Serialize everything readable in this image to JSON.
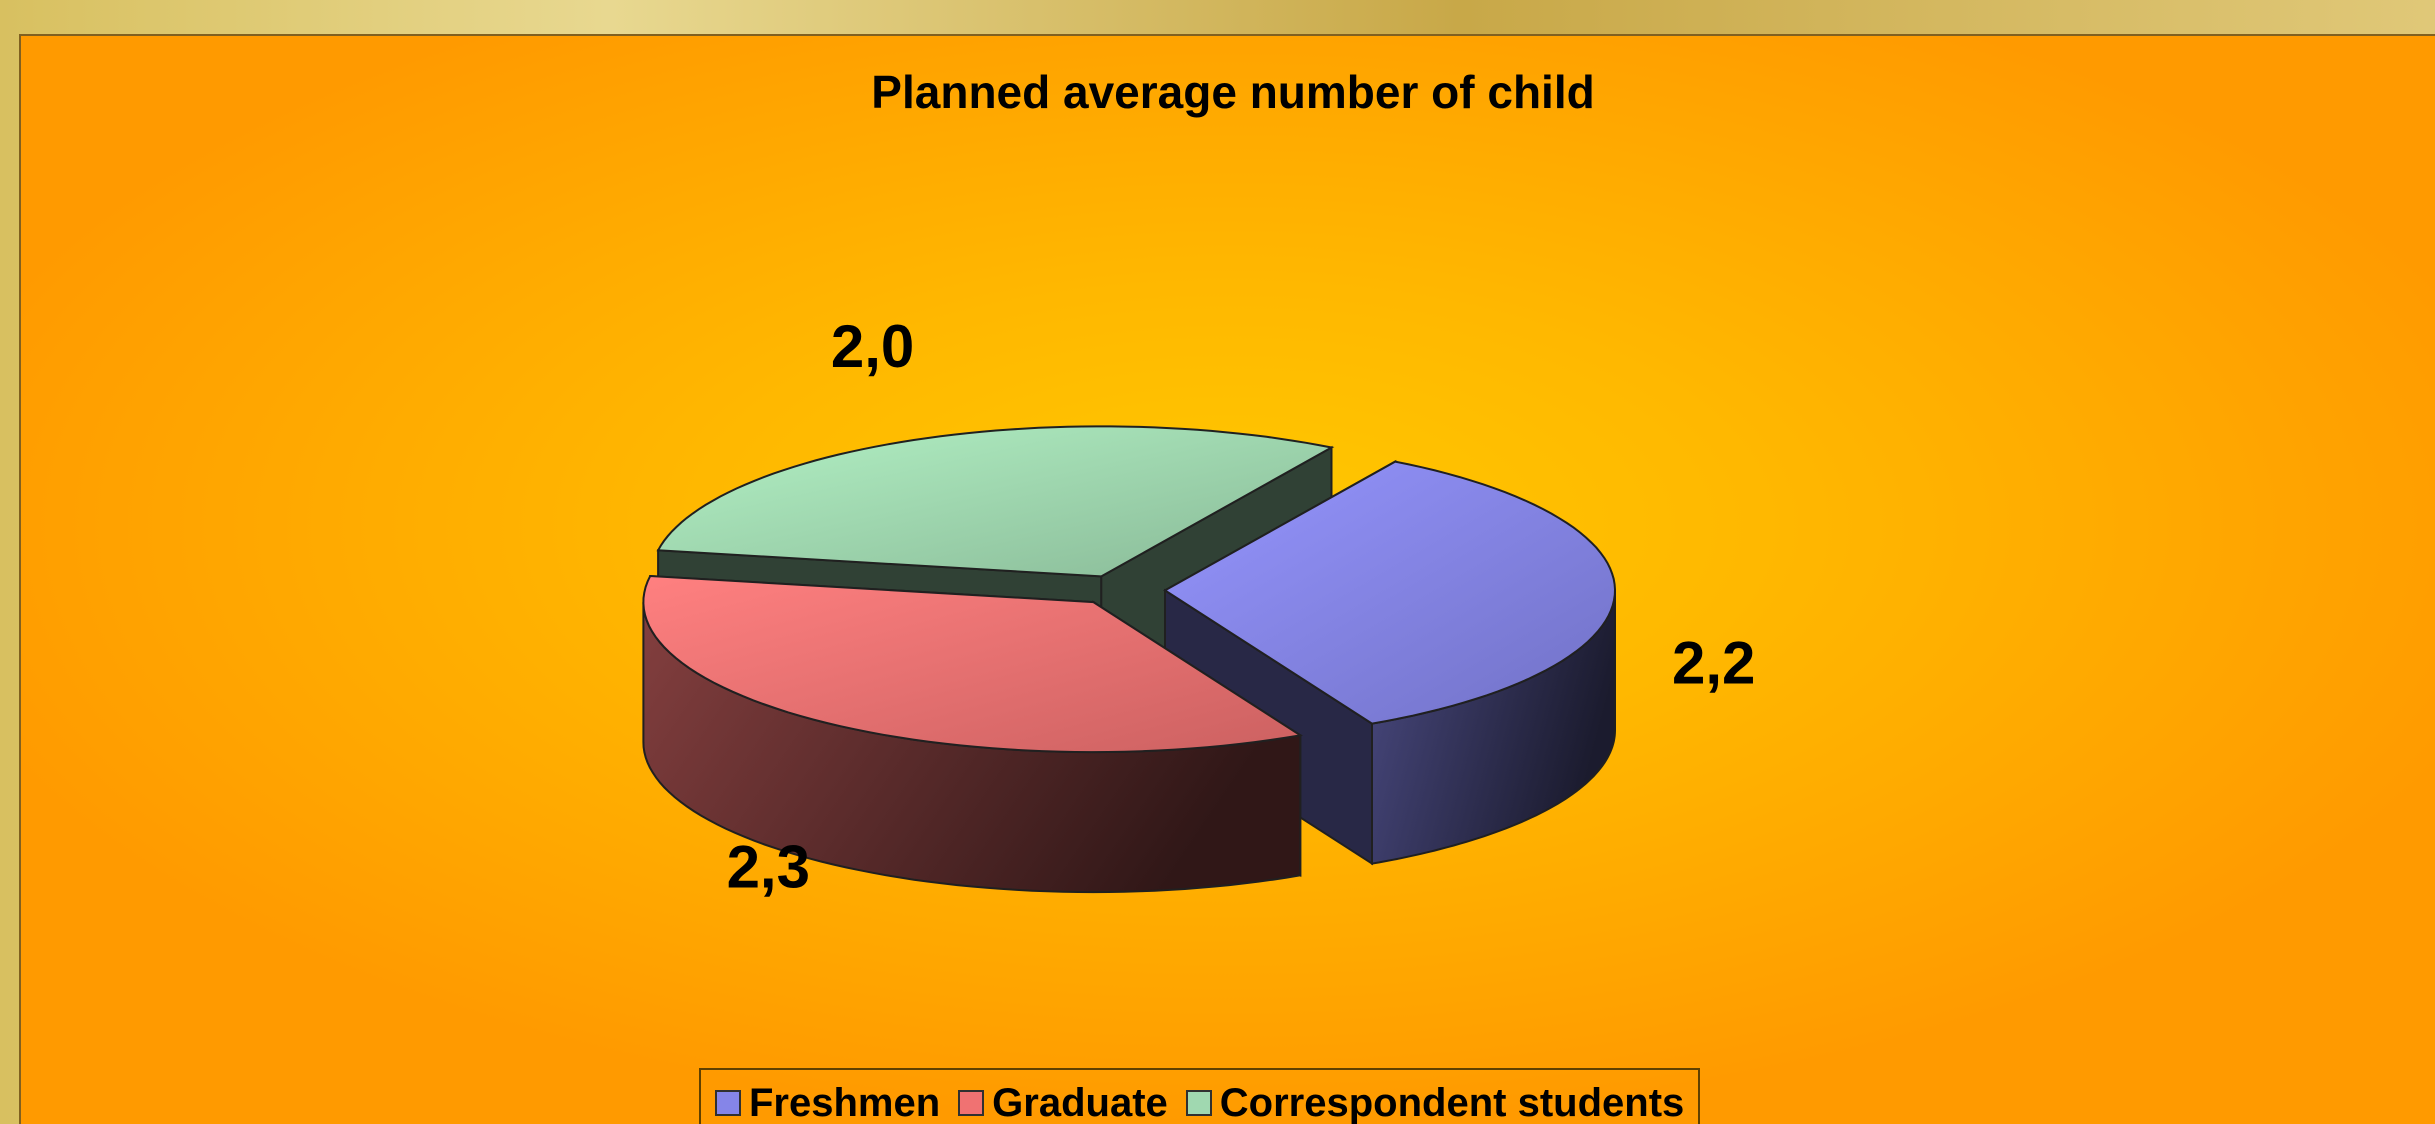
{
  "chart_data": {
    "type": "pie3d",
    "title": "Planned average number of child",
    "categories": [
      "Freshmen",
      "Graduate",
      "Correspondent students"
    ],
    "values": [
      2.2,
      2.3,
      2.0
    ],
    "value_labels": [
      "2,2",
      "2,3",
      "2,0"
    ],
    "colors": [
      "#8585e8",
      "#f07272",
      "#a0d8b0"
    ],
    "legend": "bottom"
  }
}
